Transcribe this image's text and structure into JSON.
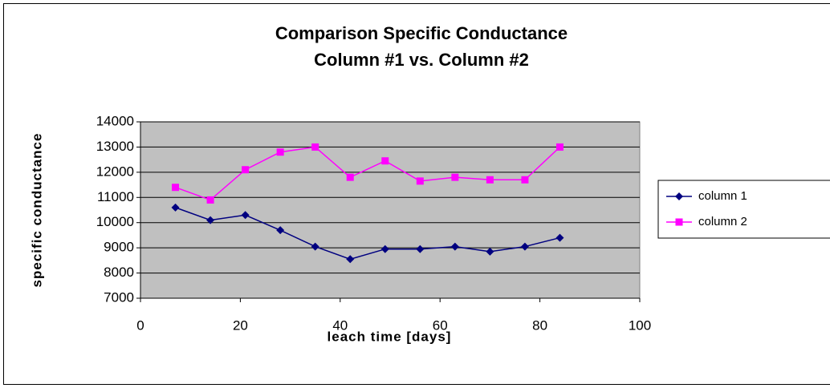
{
  "chart_data": {
    "type": "line",
    "title": [
      "Comparison Specific Conductance",
      "Column #1 vs. Column #2"
    ],
    "x_label": "leach time [days]",
    "y_label": "specific conductance",
    "x": [
      7,
      14,
      21,
      28,
      35,
      42,
      49,
      56,
      63,
      70,
      77,
      84
    ],
    "series": [
      {
        "name": "column 1",
        "color": "#000080",
        "marker": "diamond",
        "values": [
          10600,
          10100,
          10300,
          9700,
          9050,
          8550,
          8950,
          8950,
          9050,
          8850,
          9050,
          9400
        ]
      },
      {
        "name": "column 2",
        "color": "#ff00ff",
        "marker": "square",
        "values": [
          11400,
          10900,
          12100,
          12800,
          13000,
          11800,
          12450,
          11650,
          11800,
          11700,
          11700,
          13000
        ]
      }
    ],
    "xlim": [
      0,
      100
    ],
    "xticks": [
      0,
      20,
      40,
      60,
      80,
      100
    ],
    "ylim": [
      7000,
      14000
    ],
    "yticks": [
      7000,
      8000,
      9000,
      10000,
      11000,
      12000,
      13000,
      14000
    ],
    "grid": true,
    "legend": "right",
    "plot_background": "#c0c0c0"
  }
}
